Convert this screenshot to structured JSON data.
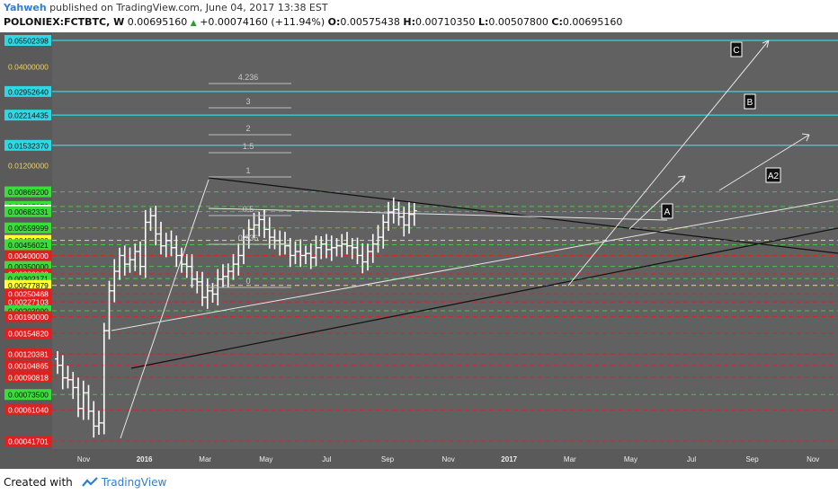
{
  "header": {
    "author": "Yahweh",
    "published_text": "published on TradingView.com, June 04, 2017 13:38 EST",
    "symbol": "POLONIEX:FCTBTC, W",
    "last": "0.00695160",
    "change": "+0.00074160 (+11.94%)",
    "o_label": "O:",
    "o": "0.00575438",
    "h_label": "H:",
    "h": "0.00710350",
    "l_label": "L:",
    "l": "0.00507800",
    "c_label": "C:",
    "c": "0.00695160"
  },
  "footer": {
    "created_with": "Created with",
    "brand": "TradingView"
  },
  "colors": {
    "plot_bg": "#616161",
    "bars": "#ffffff",
    "cyan": "#2ed8e4",
    "green": "#3ddc3d",
    "red": "#e02020",
    "yellow": "#ffff33",
    "gray": "#cfcfcf",
    "black": "#111111"
  },
  "chart_data": {
    "type": "ohlc",
    "price_labels": [
      {
        "text": "0.05502398",
        "color": "cyan"
      },
      {
        "text": "0.04000000",
        "color": "none"
      },
      {
        "text": "0.02952640",
        "color": "cyan"
      },
      {
        "text": "0.02214435",
        "color": "cyan"
      },
      {
        "text": "0.01532370",
        "color": "cyan"
      },
      {
        "text": "0.01200000",
        "color": "none"
      },
      {
        "text": "0.00869200",
        "color": "green"
      },
      {
        "text": "0.00727272",
        "color": "green"
      },
      {
        "text": "0.00695160",
        "color": "white"
      },
      {
        "text": "0.00682331",
        "color": "green"
      },
      {
        "text": "0.00559999",
        "color": "green"
      },
      {
        "text": "0.00481300",
        "color": "yellow"
      },
      {
        "text": "0.00456021",
        "color": "green"
      },
      {
        "text": "0.00400000",
        "color": "red"
      },
      {
        "text": "0.00350000",
        "color": "green"
      },
      {
        "text": "0.00320000",
        "color": "red"
      },
      {
        "text": "0.00302171",
        "color": "green"
      },
      {
        "text": "0.00277879",
        "color": "yellow"
      },
      {
        "text": "0.00250468",
        "color": "red"
      },
      {
        "text": "0.00227103",
        "color": "red"
      },
      {
        "text": "0.00203990",
        "color": "green"
      },
      {
        "text": "0.00190000",
        "color": "red"
      },
      {
        "text": "0.00154820",
        "color": "red"
      },
      {
        "text": "0.00120381",
        "color": "red"
      },
      {
        "text": "0.00104865",
        "color": "red"
      },
      {
        "text": "0.00090818",
        "color": "red"
      },
      {
        "text": "0.00073500",
        "color": "green"
      },
      {
        "text": "0.00061040",
        "color": "red"
      },
      {
        "text": "0.00041701",
        "color": "red"
      }
    ],
    "x_labels": [
      {
        "text": "Nov",
        "bold": false
      },
      {
        "text": "2016",
        "bold": true
      },
      {
        "text": "Mar",
        "bold": false
      },
      {
        "text": "May",
        "bold": false
      },
      {
        "text": "Jul",
        "bold": false
      },
      {
        "text": "Sep",
        "bold": false
      },
      {
        "text": "Nov",
        "bold": false
      },
      {
        "text": "2017",
        "bold": true
      },
      {
        "text": "Mar",
        "bold": false
      },
      {
        "text": "May",
        "bold": false
      },
      {
        "text": "Jul",
        "bold": false
      },
      {
        "text": "Sep",
        "bold": false
      },
      {
        "text": "Nov",
        "bold": false
      }
    ],
    "fib_labels": [
      "4.236",
      "3",
      "2",
      "1.5",
      "1",
      "0.5",
      "0.236",
      "0"
    ],
    "wave_labels": [
      "C",
      "B",
      "A2",
      "A"
    ],
    "closes": [
      0.00105,
      0.0009,
      0.00088,
      0.0008,
      0.00062,
      0.00075,
      0.0006,
      0.0005,
      0.00052,
      0.0016,
      0.0026,
      0.0033,
      0.004,
      0.0036,
      0.0038,
      0.0042,
      0.0035,
      0.006,
      0.0065,
      0.0052,
      0.0045,
      0.0048,
      0.0044,
      0.004,
      0.0036,
      0.0035,
      0.003,
      0.0029,
      0.0024,
      0.0026,
      0.0025,
      0.003,
      0.0031,
      0.0033,
      0.0036,
      0.004,
      0.005,
      0.0055,
      0.0058,
      0.0062,
      0.0055,
      0.005,
      0.0048,
      0.0046,
      0.0045,
      0.004,
      0.0042,
      0.004,
      0.0041,
      0.0039,
      0.0044,
      0.0046,
      0.0043,
      0.0044,
      0.0045,
      0.0046,
      0.0045,
      0.0044,
      0.004,
      0.0037,
      0.0042,
      0.0046,
      0.005,
      0.006,
      0.0068,
      0.007,
      0.0064,
      0.0058,
      0.0066,
      0.0069
    ]
  }
}
